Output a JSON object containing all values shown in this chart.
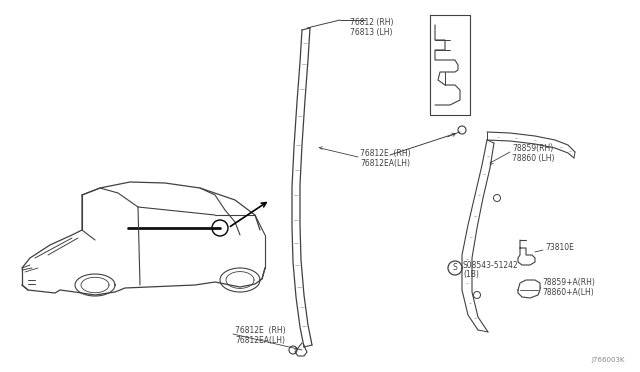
{
  "background_color": "#ffffff",
  "line_color": "#404040",
  "text_color": "#404040",
  "diagram_id": "J766003K",
  "labels": {
    "top_molding_1": "76812 (RH)",
    "top_molding_2": "76813 (LH)",
    "mid_clip_1": "76812E  (RH)",
    "mid_clip_2": "76812EA(LH)",
    "bot_clip_1": "76812E  (RH)",
    "bot_clip_2": "76812EA(LH)",
    "rear_upper_1": "78859(RH)",
    "rear_upper_2": "78860 (LH)",
    "bracket": "73810E",
    "bolt_1": "S08543-51242",
    "bolt_2": "(1B)",
    "rear_lower_1": "78859+A(RH)",
    "rear_lower_2": "78860+A(LH)"
  }
}
